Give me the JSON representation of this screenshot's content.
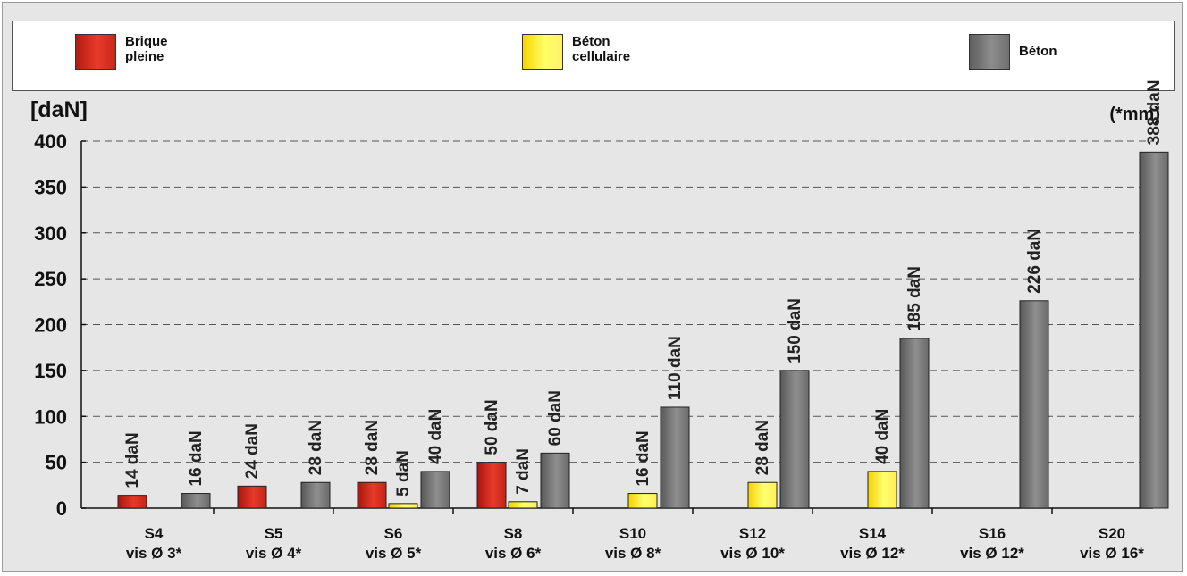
{
  "legend": {
    "brique": "Brique\npleine",
    "cellulaire": "Béton\ncellulaire",
    "beton": "Béton"
  },
  "y_unit": "[daN]",
  "x_unit": "(*mm)",
  "colors": {
    "brique": "#d92b1f",
    "cellulaire": "#ffff40",
    "beton": "#7a7a7a"
  },
  "chart_data": {
    "type": "bar",
    "categories": [
      "S4",
      "S5",
      "S6",
      "S8",
      "S10",
      "S12",
      "S14",
      "S16",
      "S20"
    ],
    "sublabels": [
      "vis Ø 3*",
      "vis Ø 4*",
      "vis Ø 5*",
      "vis Ø 6*",
      "vis Ø 8*",
      "vis Ø 10*",
      "vis Ø 12*",
      "vis Ø 12*",
      "vis Ø 16*"
    ],
    "series": [
      {
        "name": "Brique pleine",
        "values": [
          14,
          24,
          28,
          50,
          null,
          null,
          null,
          null,
          null
        ]
      },
      {
        "name": "Béton cellulaire",
        "values": [
          null,
          null,
          5,
          7,
          16,
          28,
          40,
          null,
          null
        ]
      },
      {
        "name": "Béton",
        "values": [
          16,
          28,
          40,
          60,
          110,
          150,
          185,
          226,
          388
        ]
      }
    ],
    "value_suffix": " daN",
    "yticks": [
      0,
      50,
      100,
      150,
      200,
      250,
      300,
      350,
      400
    ],
    "ylim": [
      0,
      400
    ],
    "grid": true,
    "legend": "top"
  }
}
